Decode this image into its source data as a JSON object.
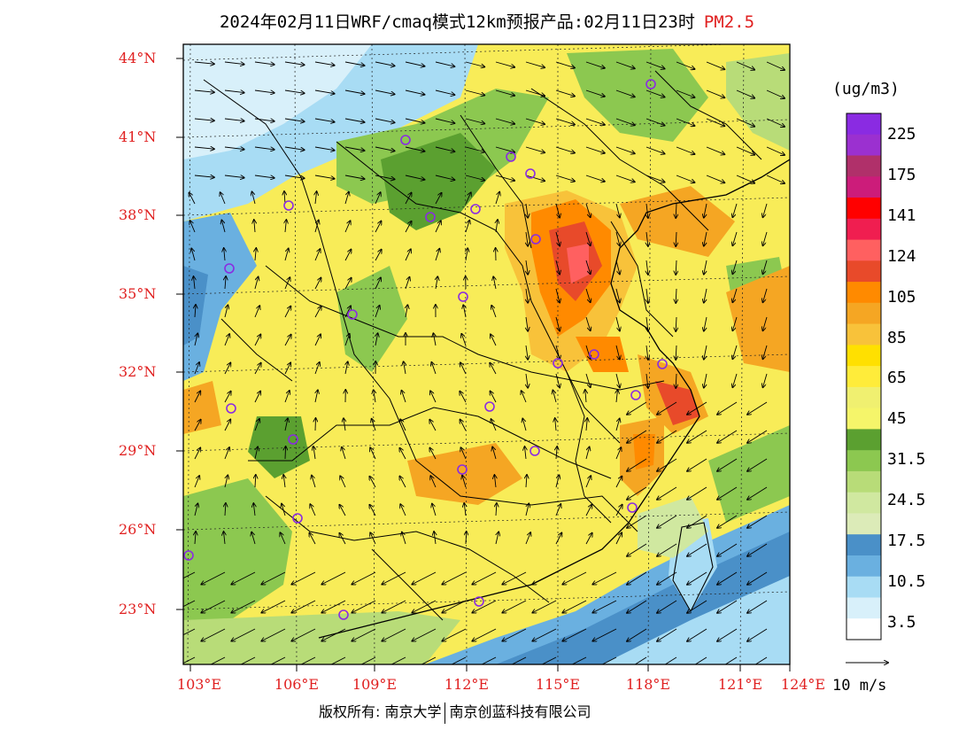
{
  "title": {
    "main": "2024年02月11日WRF/cmaq模式12km预报产品:02月11日23时",
    "variable": "PM2.5"
  },
  "axes": {
    "lat_labels": [
      "44°N",
      "41°N",
      "38°N",
      "35°N",
      "32°N",
      "29°N",
      "26°N",
      "23°N"
    ],
    "lon_labels": [
      "103°E",
      "106°E",
      "109°E",
      "112°E",
      "115°E",
      "118°E",
      "121°E",
      "124°E"
    ]
  },
  "colorbar": {
    "unit": "(ug/m3)",
    "labels": [
      "225",
      "175",
      "141",
      "124",
      "105",
      "85",
      "65",
      "45",
      "31.5",
      "24.5",
      "17.5",
      "10.5",
      "3.5"
    ],
    "colors": [
      "#8a2be2",
      "#9b30d0",
      "#b0306a",
      "#cc1c7a",
      "#ff0000",
      "#f01e50",
      "#ff6060",
      "#e84a2a",
      "#ff8a00",
      "#f5a623",
      "#f8c23a",
      "#ffe000",
      "#ffec3a",
      "#f0f070",
      "#f5f56a",
      "#5ba030",
      "#8cc850",
      "#b8dc78",
      "#d0e8a0",
      "#dcebb8",
      "#4a90c8",
      "#6ab0e0",
      "#a8dcf4",
      "#d8f0fa",
      "#ffffff"
    ]
  },
  "wind": {
    "label": "10 m/s"
  },
  "footer": {
    "left": "版权所有: 南京大学",
    "right": "南京创蓝科技有限公司"
  },
  "stations_color": "#8a2be2",
  "accent": "#e02020"
}
